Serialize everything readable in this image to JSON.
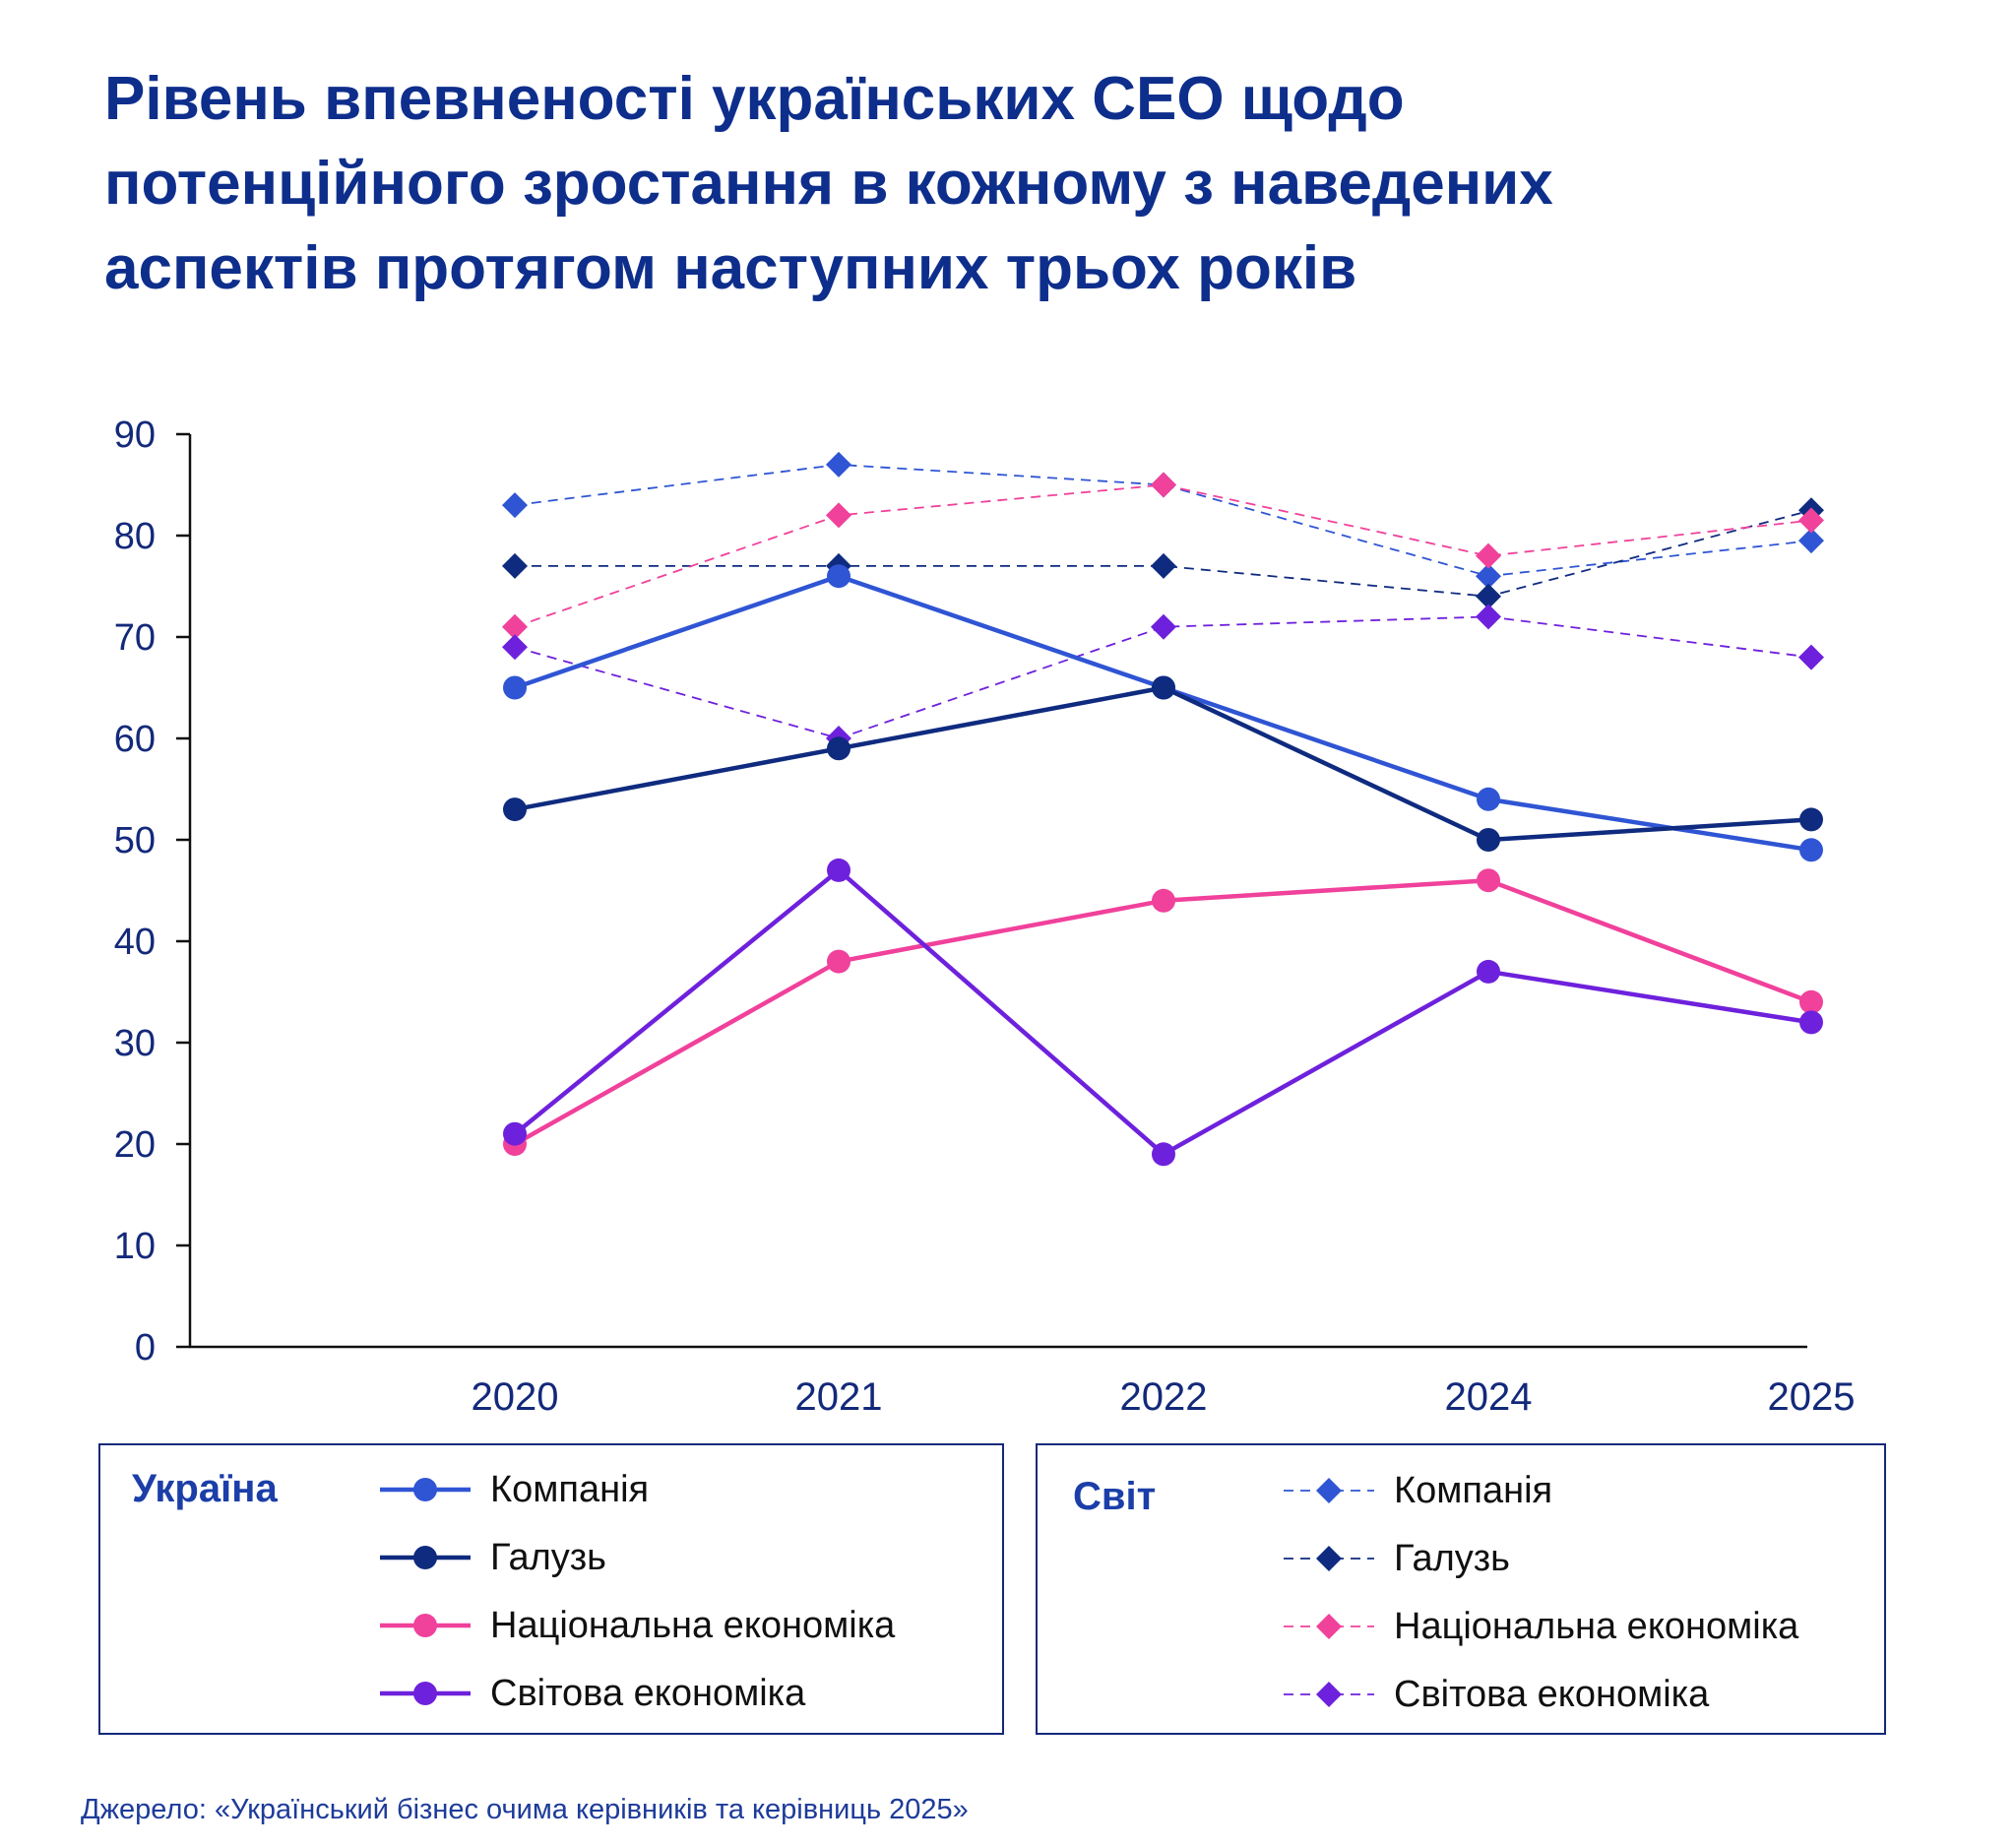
{
  "chart_data": {
    "type": "line",
    "title": "Рівень впевненості українських CEO щодо потенційного зростання в кожному з наведених аспектів протягом наступних трьох років",
    "title_lines": [
      "Рівень впевненості українських CEO щодо",
      "потенційного зростання в кожному з наведених",
      "аспектів протягом наступних трьох років"
    ],
    "categories": [
      "2020",
      "2021",
      "2022",
      "2024",
      "2025"
    ],
    "ylim": [
      0,
      90
    ],
    "yticks": [
      0,
      10,
      20,
      30,
      40,
      50,
      60,
      70,
      80,
      90
    ],
    "grid": false,
    "legend_position": "bottom",
    "groups": [
      {
        "name": "Україна",
        "line_style": "solid",
        "marker": "circle",
        "series": [
          {
            "name": "Компанія",
            "color": "#2f55d4",
            "values": [
              65,
              76,
              65,
              54,
              49
            ]
          },
          {
            "name": "Галузь",
            "color": "#0f2b7f",
            "values": [
              53,
              59,
              65,
              50,
              52
            ]
          },
          {
            "name": "Національна економіка",
            "color": "#f0419b",
            "values": [
              20,
              38,
              44,
              46,
              34
            ]
          },
          {
            "name": "Світова економіка",
            "color": "#6e21dc",
            "values": [
              21,
              47,
              19,
              37,
              32
            ]
          }
        ]
      },
      {
        "name": "Світ",
        "line_style": "dashed",
        "marker": "diamond",
        "series": [
          {
            "name": "Компанія",
            "color": "#2f55d4",
            "values": [
              83,
              87,
              85,
              76,
              79.5
            ]
          },
          {
            "name": "Галузь",
            "color": "#0f2b7f",
            "values": [
              77,
              77,
              77,
              74,
              82.5
            ]
          },
          {
            "name": "Національна економіка",
            "color": "#f0419b",
            "values": [
              71,
              82,
              85,
              78,
              81.5
            ]
          },
          {
            "name": "Світова економіка",
            "color": "#6e21dc",
            "values": [
              69,
              60,
              71,
              72,
              68
            ]
          }
        ]
      }
    ]
  },
  "colors": {
    "title": "#0e2e8c",
    "axis": "#101010",
    "tick_labels": "#13297a",
    "legend_border": "#13297a"
  },
  "source": "Джерело: «Український бізнес очима керівників та керівниць 2025»"
}
